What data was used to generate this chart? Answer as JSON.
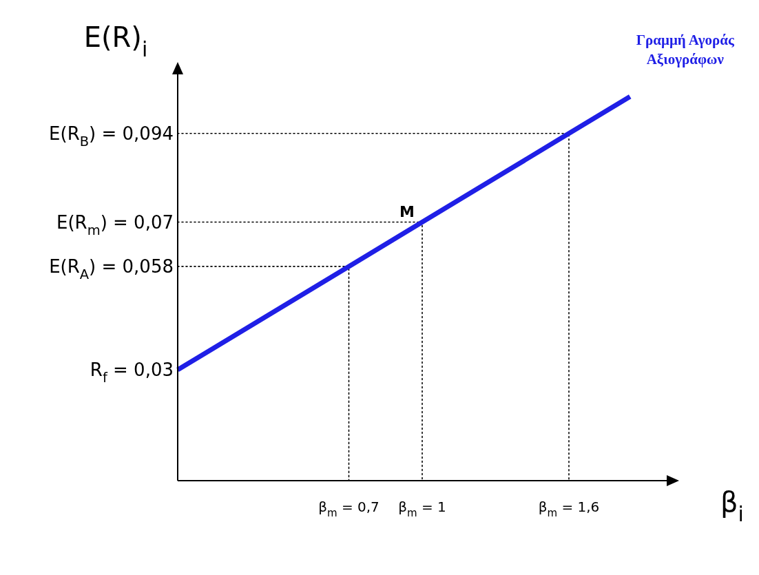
{
  "chart_data": {
    "type": "line",
    "xlabel": "β$_{i}$",
    "ylabel": "E(R)$_{i}$",
    "xlim": [
      0,
      2
    ],
    "ylim": [
      0,
      0.11
    ],
    "xticks": [
      {
        "value": 0.7,
        "label": "β$_{m}$ = 0,7"
      },
      {
        "value": 1,
        "label": "β$_{m}$ = 1"
      },
      {
        "value": 1.6,
        "label": "β$_{m}$ = 1,6"
      }
    ],
    "yticks": [
      {
        "value": 0.03,
        "label": "R$_{f}$ = 0,03"
      },
      {
        "value": 0.058,
        "label": "E(R$_{A}$) = 0,058"
      },
      {
        "value": 0.07,
        "label": "E(R$_{m}$) = 0,07"
      },
      {
        "value": 0.094,
        "label": "E(R$_{B}$) = 0,094"
      }
    ],
    "series": [
      {
        "name": "Γραμμή Αγοράς Αξιογράφων",
        "color": "#1f1fe6",
        "x": [
          0,
          0.7,
          1,
          1.6,
          1.85
        ],
        "values": [
          0.03,
          0.058,
          0.07,
          0.094,
          0.104
        ],
        "line_style": "solid"
      },
      {
        "color": "#000000",
        "x": [
          0,
          0.7,
          0.7
        ],
        "values": [
          0.058,
          0.058,
          0
        ],
        "line_style": "dotted"
      },
      {
        "color": "#000000",
        "x": [
          0,
          1,
          1
        ],
        "values": [
          0.07,
          0.07,
          0
        ],
        "line_style": "dotted"
      },
      {
        "color": "#000000",
        "x": [
          0,
          1.6,
          1.6
        ],
        "values": [
          0.094,
          0.094,
          0
        ],
        "line_style": "dotted"
      }
    ],
    "annotations": [
      {
        "text": "M",
        "x": 1,
        "y": 0.07
      }
    ],
    "marker": "none",
    "grid": false
  }
}
